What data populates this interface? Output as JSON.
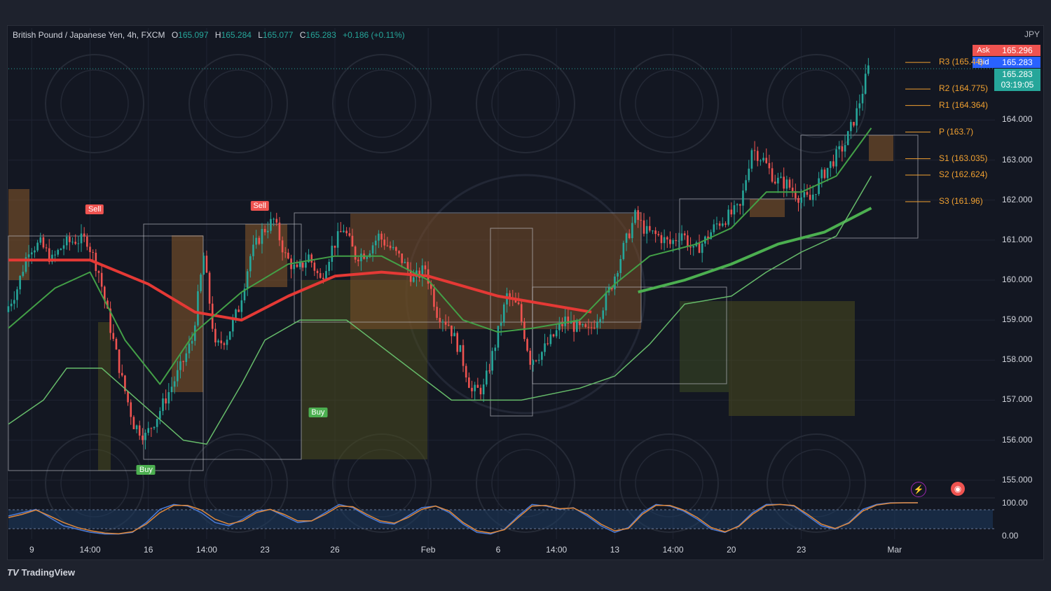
{
  "header": {
    "symbol": "British Pound / Japanese Yen, 4h, FXCM",
    "o_label": "O",
    "o_value": "165.097",
    "h_label": "H",
    "h_value": "165.284",
    "l_label": "L",
    "l_value": "165.077",
    "c_label": "C",
    "c_value": "165.283",
    "change": "+0.186 (+0.11%)"
  },
  "currency": "JPY",
  "quote": {
    "ask_label": "Ask",
    "ask_value": "165.296",
    "bid_label": "Bid",
    "bid_value": "165.283",
    "last_value": "165.283",
    "countdown": "03:19:05"
  },
  "colors": {
    "bull": "#26a69a",
    "bear": "#ef5350",
    "pivot": "#f0a030",
    "ema_bull": "#4caf50",
    "ema_bear": "#e53935"
  },
  "pivots": [
    {
      "label": "R3 (165.44)",
      "value": 165.44
    },
    {
      "label": "R2 (164.775)",
      "value": 164.775
    },
    {
      "label": "R1 (164.364)",
      "value": 164.364
    },
    {
      "label": "P (163.7)",
      "value": 163.7
    },
    {
      "label": "S1 (163.035)",
      "value": 163.035
    },
    {
      "label": "S2 (162.624)",
      "value": 162.624
    },
    {
      "label": "S3 (161.96)",
      "value": 161.96
    }
  ],
  "signals": [
    {
      "label": "Sell",
      "type": "sell",
      "x": 14.8
    },
    {
      "label": "Buy",
      "type": "buy",
      "x": 23.6
    },
    {
      "label": "Sell",
      "type": "sell",
      "x": 43.1
    },
    {
      "label": "Buy",
      "type": "buy",
      "x": 53.1
    }
  ],
  "brand": "TradingView",
  "tools": {
    "lightning_icon": "lightning-icon",
    "record_icon": "record-icon"
  },
  "chart_data": [
    {
      "type": "candlestick",
      "title": "British Pound / Japanese Yen, 4h, FXCM",
      "ylabel": "JPY",
      "ylim": [
        154.75,
        165.95
      ],
      "yticks": [
        155,
        156,
        157,
        158,
        159,
        160,
        161,
        162,
        163,
        164
      ],
      "yticklabels": [
        "155.000",
        "156.000",
        "157.000",
        "158.000",
        "159.000",
        "160.000",
        "161.000",
        "162.000",
        "163.000",
        "164.000"
      ],
      "xticks": [
        {
          "label": "9",
          "x": 4
        },
        {
          "label": "14:00",
          "x": 14
        },
        {
          "label": "16",
          "x": 24
        },
        {
          "label": "14:00",
          "x": 34
        },
        {
          "label": "23",
          "x": 44
        },
        {
          "label": "26",
          "x": 56
        },
        {
          "label": "Feb",
          "x": 72
        },
        {
          "label": "6",
          "x": 84
        },
        {
          "label": "14:00",
          "x": 94
        },
        {
          "label": "13",
          "x": 104
        },
        {
          "label": "14:00",
          "x": 114
        },
        {
          "label": "20",
          "x": 124
        },
        {
          "label": "23",
          "x": 136
        },
        {
          "label": "Mar",
          "x": 152
        }
      ],
      "xlim": [
        0,
        162
      ],
      "series": [
        {
          "name": "",
          "kind": "price",
          "points": [
            [
              0,
              159.2
            ],
            [
              2,
              159.8
            ],
            [
              4,
              160.8
            ],
            [
              6,
              160.9
            ],
            [
              8,
              160.5
            ],
            [
              10,
              160.9
            ],
            [
              12,
              161.0
            ],
            [
              14,
              161.0
            ],
            [
              16,
              160.2
            ],
            [
              18,
              158.8
            ],
            [
              20,
              157.5
            ],
            [
              22,
              156.4
            ],
            [
              24,
              156.1
            ],
            [
              26,
              156.6
            ],
            [
              28,
              157.2
            ],
            [
              30,
              157.8
            ],
            [
              32,
              158.5
            ],
            [
              34,
              160.6
            ],
            [
              36,
              158.3
            ],
            [
              38,
              158.6
            ],
            [
              40,
              159.3
            ],
            [
              42,
              160.6
            ],
            [
              44,
              161.2
            ],
            [
              46,
              161.5
            ],
            [
              48,
              160.6
            ],
            [
              50,
              160.2
            ],
            [
              52,
              160.6
            ],
            [
              54,
              160.0
            ],
            [
              56,
              160.8
            ],
            [
              58,
              161.3
            ],
            [
              60,
              160.6
            ],
            [
              62,
              160.7
            ],
            [
              64,
              161.1
            ],
            [
              66,
              160.8
            ],
            [
              68,
              160.5
            ],
            [
              70,
              160.0
            ],
            [
              72,
              160.3
            ],
            [
              74,
              159.2
            ],
            [
              76,
              158.9
            ],
            [
              78,
              158.2
            ],
            [
              80,
              157.2
            ],
            [
              82,
              157.3
            ],
            [
              84,
              158.4
            ],
            [
              86,
              159.6
            ],
            [
              88,
              159.3
            ],
            [
              90,
              158.0
            ],
            [
              92,
              158.2
            ],
            [
              94,
              158.6
            ],
            [
              96,
              159.0
            ],
            [
              98,
              158.8
            ],
            [
              100,
              158.7
            ],
            [
              102,
              159.2
            ],
            [
              104,
              159.9
            ],
            [
              106,
              160.8
            ],
            [
              108,
              161.6
            ],
            [
              110,
              161.2
            ],
            [
              112,
              161.1
            ],
            [
              114,
              160.9
            ],
            [
              116,
              161.2
            ],
            [
              118,
              160.7
            ],
            [
              120,
              161.0
            ],
            [
              122,
              161.4
            ],
            [
              124,
              161.6
            ],
            [
              126,
              161.8
            ],
            [
              128,
              163.3
            ],
            [
              130,
              163.0
            ],
            [
              132,
              162.5
            ],
            [
              134,
              162.4
            ],
            [
              136,
              162.1
            ],
            [
              138,
              162.0
            ],
            [
              140,
              162.6
            ],
            [
              142,
              163.0
            ],
            [
              144,
              163.4
            ],
            [
              146,
              164.2
            ],
            [
              148,
              165.28
            ]
          ]
        },
        {
          "name": "",
          "kind": "ema_slow",
          "points": [
            [
              0,
              160.5
            ],
            [
              14,
              160.5
            ],
            [
              24,
              159.9
            ],
            [
              32,
              159.2
            ],
            [
              40,
              159.0
            ],
            [
              48,
              159.6
            ],
            [
              56,
              160.1
            ],
            [
              64,
              160.2
            ],
            [
              72,
              160.1
            ],
            [
              84,
              159.6
            ],
            [
              96,
              159.3
            ],
            [
              100,
              159.2
            ]
          ]
        },
        {
          "name": "",
          "kind": "ema_slow_bull",
          "points": [
            [
              108,
              159.7
            ],
            [
              116,
              160.0
            ],
            [
              124,
              160.4
            ],
            [
              132,
              160.9
            ],
            [
              140,
              161.2
            ],
            [
              148,
              161.8
            ]
          ]
        },
        {
          "name": "",
          "kind": "ema_mid",
          "points": [
            [
              0,
              158.8
            ],
            [
              8,
              159.8
            ],
            [
              14,
              160.2
            ],
            [
              20,
              158.5
            ],
            [
              26,
              157.4
            ],
            [
              32,
              158.7
            ],
            [
              40,
              159.7
            ],
            [
              48,
              160.4
            ],
            [
              56,
              160.6
            ],
            [
              64,
              160.6
            ],
            [
              72,
              160.0
            ],
            [
              78,
              159.0
            ],
            [
              84,
              158.7
            ],
            [
              90,
              158.8
            ],
            [
              98,
              159.0
            ],
            [
              104,
              159.9
            ],
            [
              110,
              160.6
            ],
            [
              118,
              160.9
            ],
            [
              124,
              161.3
            ],
            [
              130,
              162.2
            ],
            [
              136,
              162.2
            ],
            [
              142,
              162.6
            ],
            [
              148,
              163.8
            ]
          ]
        },
        {
          "name": "",
          "kind": "trail_stop",
          "points": [
            [
              0,
              156.4
            ],
            [
              6,
              157.0
            ],
            [
              10,
              157.8
            ],
            [
              16,
              157.8
            ],
            [
              30,
              156.0
            ],
            [
              34,
              155.9
            ],
            [
              40,
              157.4
            ],
            [
              44,
              158.5
            ],
            [
              50,
              159.0
            ],
            [
              58,
              159.0
            ],
            [
              76,
              157.0
            ],
            [
              88,
              157.0
            ],
            [
              98,
              157.3
            ],
            [
              104,
              157.6
            ],
            [
              110,
              158.4
            ],
            [
              116,
              159.4
            ],
            [
              124,
              159.6
            ],
            [
              130,
              160.2
            ],
            [
              136,
              160.7
            ],
            [
              142,
              161.1
            ],
            [
              148,
              162.6
            ]
          ]
        }
      ],
      "legend": "none",
      "grid": true
    },
    {
      "type": "line",
      "title": "",
      "ylim": [
        0,
        100
      ],
      "yticklabels": [
        "100.00",
        "0.00"
      ],
      "series": [
        {
          "name": "",
          "color": "#4a7bd8",
          "values": [
            60,
            70,
            80,
            55,
            30,
            20,
            10,
            5,
            5,
            10,
            40,
            80,
            95,
            90,
            70,
            40,
            30,
            50,
            75,
            80,
            60,
            40,
            45,
            70,
            95,
            85,
            60,
            40,
            35,
            60,
            85,
            90,
            70,
            35,
            10,
            5,
            20,
            60,
            95,
            90,
            80,
            85,
            60,
            30,
            10,
            25,
            70,
            95,
            90,
            75,
            50,
            20,
            10,
            30,
            70,
            95,
            95,
            90,
            60,
            30,
            20,
            40,
            80,
            95,
            100,
            100,
            100
          ]
        },
        {
          "name": "",
          "color": "#e0883a",
          "values": [
            55,
            65,
            78,
            60,
            40,
            25,
            15,
            8,
            6,
            12,
            35,
            70,
            92,
            92,
            78,
            50,
            35,
            45,
            70,
            80,
            65,
            45,
            45,
            65,
            90,
            88,
            65,
            45,
            38,
            55,
            80,
            90,
            75,
            40,
            15,
            8,
            18,
            55,
            90,
            92,
            82,
            84,
            65,
            35,
            15,
            22,
            65,
            92,
            92,
            78,
            55,
            25,
            12,
            28,
            65,
            92,
            95,
            92,
            65,
            35,
            22,
            38,
            75,
            93,
            99,
            100,
            100
          ]
        }
      ]
    }
  ]
}
